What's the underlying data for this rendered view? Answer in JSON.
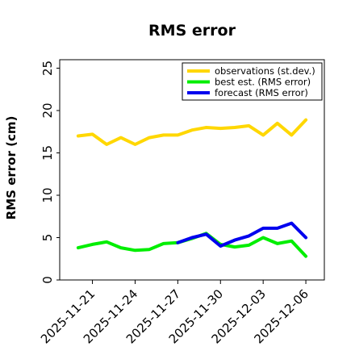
{
  "chart_data": {
    "type": "line",
    "title": "RMS error",
    "xlabel": "",
    "ylabel": "RMS error (cm)",
    "ylim": [
      0,
      26
    ],
    "yticks": [
      0,
      5,
      10,
      15,
      20,
      25
    ],
    "xticks": [
      "2025-11-21",
      "2025-11-24",
      "2025-11-27",
      "2025-11-30",
      "2025-12-03",
      "2025-12-06"
    ],
    "highlight_tick": "2025-11-27",
    "highlight_color": "#2e8b2e",
    "grid": false,
    "legend_position": "top-right",
    "series": [
      {
        "name": "observations (st.dev.)",
        "color": "#ffd700",
        "x": [
          "2025-11-20",
          "2025-11-21",
          "2025-11-22",
          "2025-11-23",
          "2025-11-24",
          "2025-11-25",
          "2025-11-26",
          "2025-11-27",
          "2025-11-28",
          "2025-11-29",
          "2025-11-30",
          "2025-12-01",
          "2025-12-02",
          "2025-12-03",
          "2025-12-04",
          "2025-12-05",
          "2025-12-06"
        ],
        "values": [
          17.0,
          17.2,
          16.0,
          16.8,
          16.0,
          16.8,
          17.1,
          17.1,
          17.7,
          18.0,
          17.9,
          18.0,
          18.2,
          17.1,
          18.5,
          17.1,
          18.9
        ]
      },
      {
        "name": "best est. (RMS error)",
        "color": "#00ee00",
        "x": [
          "2025-11-20",
          "2025-11-21",
          "2025-11-22",
          "2025-11-23",
          "2025-11-24",
          "2025-11-25",
          "2025-11-26",
          "2025-11-27",
          "2025-11-28",
          "2025-11-29",
          "2025-11-30",
          "2025-12-01",
          "2025-12-02",
          "2025-12-03",
          "2025-12-04",
          "2025-12-05",
          "2025-12-06"
        ],
        "values": [
          3.8,
          4.2,
          4.5,
          3.8,
          3.5,
          3.6,
          4.3,
          4.4,
          4.9,
          5.5,
          4.2,
          3.9,
          4.1,
          5.0,
          4.3,
          4.6,
          2.8
        ]
      },
      {
        "name": "forecast (RMS error)",
        "color": "#0000ee",
        "x": [
          "2025-11-27",
          "2025-11-28",
          "2025-11-29",
          "2025-11-30",
          "2025-12-01",
          "2025-12-02",
          "2025-12-03",
          "2025-12-04",
          "2025-12-05",
          "2025-12-06"
        ],
        "values": [
          4.4,
          5.0,
          5.4,
          4.0,
          4.7,
          5.2,
          6.1,
          6.1,
          6.7,
          5.0
        ]
      }
    ]
  }
}
